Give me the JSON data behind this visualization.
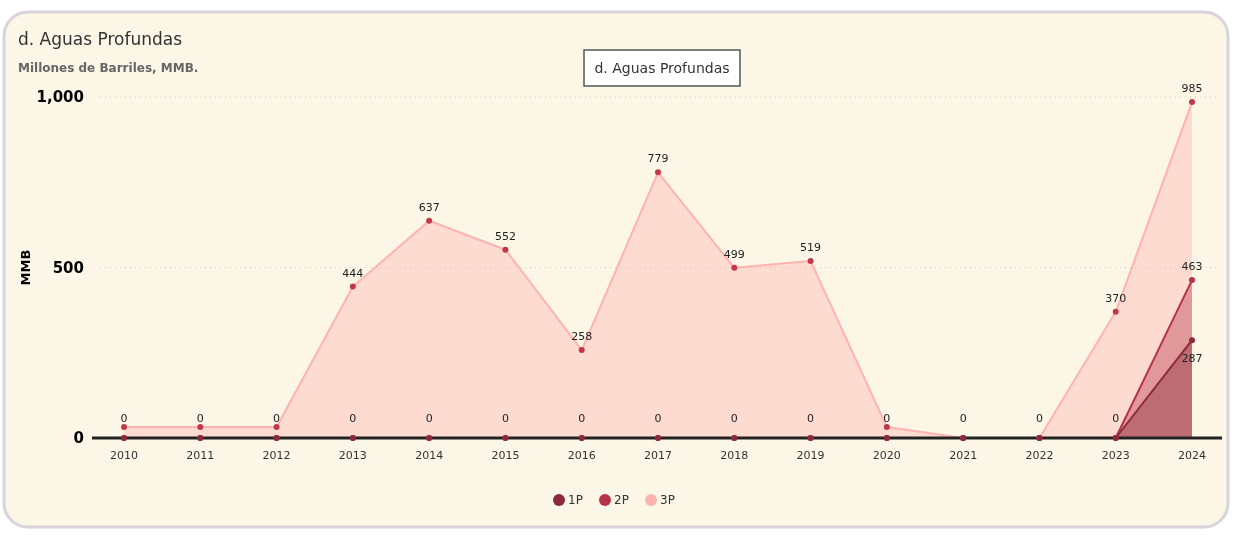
{
  "chart_data": {
    "type": "area",
    "title": "d. Aguas Profundas",
    "subtitle": "Millones de Barriles, MMB.",
    "ylabel": "MMB",
    "annotations": [
      "d. Aguas Profundas"
    ],
    "categories": [
      "2010",
      "2011",
      "2012",
      "2013",
      "2014",
      "2015",
      "2016",
      "2017",
      "2018",
      "2019",
      "2020",
      "2021",
      "2022",
      "2023",
      "2024"
    ],
    "series": [
      {
        "name": "1P",
        "color": "#8b2a3a",
        "values": [
          0,
          0,
          0,
          0,
          0,
          0,
          0,
          0,
          0,
          0,
          0,
          0,
          0,
          0,
          287
        ],
        "value_labels": [
          null,
          null,
          null,
          null,
          null,
          null,
          null,
          null,
          null,
          null,
          null,
          null,
          null,
          null,
          "287"
        ]
      },
      {
        "name": "2P",
        "color": "#b5344a",
        "values": [
          0,
          0,
          0,
          0,
          0,
          0,
          0,
          0,
          0,
          0,
          0,
          0,
          0,
          0,
          463
        ],
        "value_labels": [
          "0",
          "0",
          "0",
          "0",
          "0",
          "0",
          "0",
          "0",
          "0",
          "0",
          "0",
          "0",
          "0",
          "0",
          "463"
        ]
      },
      {
        "name": "3P",
        "color": "#ffb3b0",
        "values": [
          32,
          32,
          32,
          444,
          637,
          552,
          258,
          779,
          499,
          519,
          32,
          0,
          0,
          370,
          985
        ],
        "value_labels": [
          null,
          null,
          null,
          "444",
          "637",
          "552",
          "258",
          "779",
          "499",
          "519",
          null,
          null,
          null,
          "370",
          "985"
        ]
      }
    ],
    "ylim": [
      0,
      1000
    ],
    "yticks": [
      0,
      500,
      {
        "value": 1000,
        "label": "1,000"
      }
    ],
    "grid": "y",
    "legend": "bottom",
    "marker": "circle"
  }
}
